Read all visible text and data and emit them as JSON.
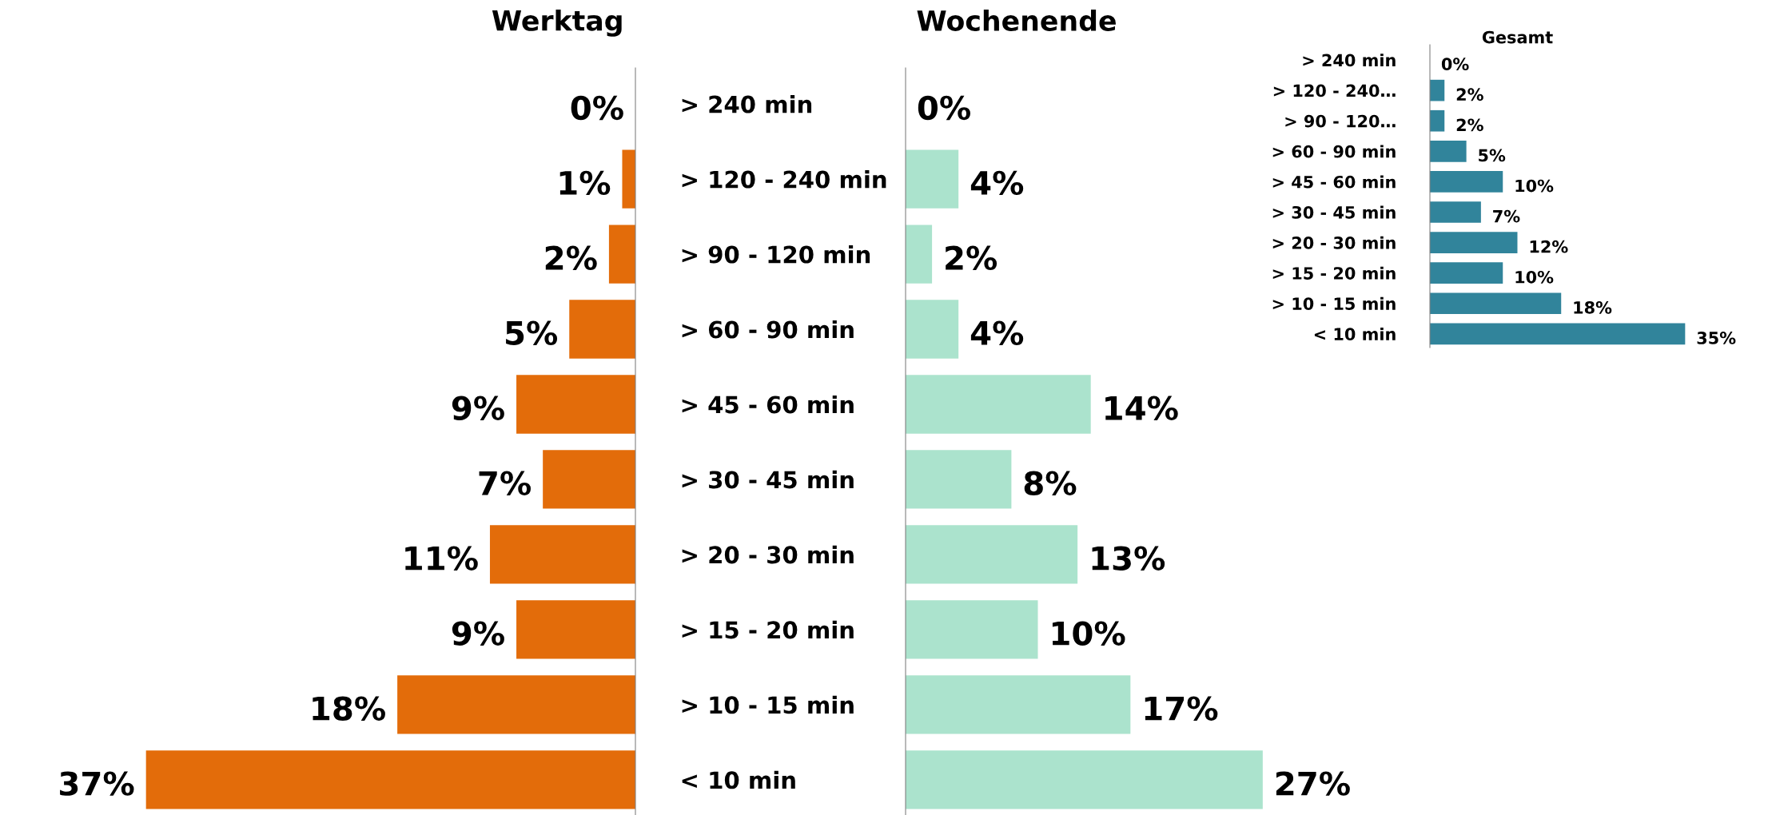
{
  "chart_data": [
    {
      "type": "bar",
      "orientation": "horizontal",
      "title": "Werktag",
      "categories": [
        "> 240 min",
        "> 120 - 240 min",
        "> 90 - 120 min",
        "> 60 - 90 min",
        "> 45 - 60 min",
        "> 30 - 45 min",
        "> 20 - 30 min",
        "> 15 - 20 min",
        "> 10 - 15 min",
        "< 10 min"
      ],
      "values": [
        0,
        1,
        2,
        5,
        9,
        7,
        11,
        9,
        18,
        37
      ],
      "value_labels": [
        "0%",
        "1%",
        "2%",
        "5%",
        "9%",
        "7%",
        "11%",
        "9%",
        "18%",
        "37%"
      ],
      "color": "#e36c0a",
      "tick_labels": "y",
      "grid": false,
      "legend": false
    },
    {
      "type": "bar",
      "orientation": "horizontal",
      "title": "Wochenende",
      "categories": [
        null,
        null,
        null,
        null,
        null,
        null,
        null,
        null,
        null,
        null
      ],
      "values": [
        0,
        4,
        2,
        4,
        14,
        8,
        13,
        10,
        17,
        27
      ],
      "value_labels": [
        "0%",
        "4%",
        "2%",
        "4%",
        "14%",
        "8%",
        "13%",
        "10%",
        "17%",
        "27%"
      ],
      "color": "#abe3cd",
      "tick_labels": false,
      "grid": false,
      "legend": false
    },
    {
      "type": "bar",
      "orientation": "horizontal",
      "title": "Gesamt",
      "categories": [
        "> 240 min",
        "> 120 - 240…",
        "> 90 - 120…",
        "> 60 - 90 min",
        "> 45 - 60 min",
        "> 30 - 45 min",
        "> 20 - 30 min",
        "> 15 - 20 min",
        "> 10 - 15 min",
        "< 10 min"
      ],
      "values": [
        0,
        2,
        2,
        5,
        10,
        7,
        12,
        10,
        18,
        35
      ],
      "value_labels": [
        "0%",
        "2%",
        "2%",
        "5%",
        "10%",
        "7%",
        "12%",
        "10%",
        "18%",
        "35%"
      ],
      "color": "#31849b",
      "tick_labels": "y",
      "grid": false,
      "legend": false
    }
  ]
}
